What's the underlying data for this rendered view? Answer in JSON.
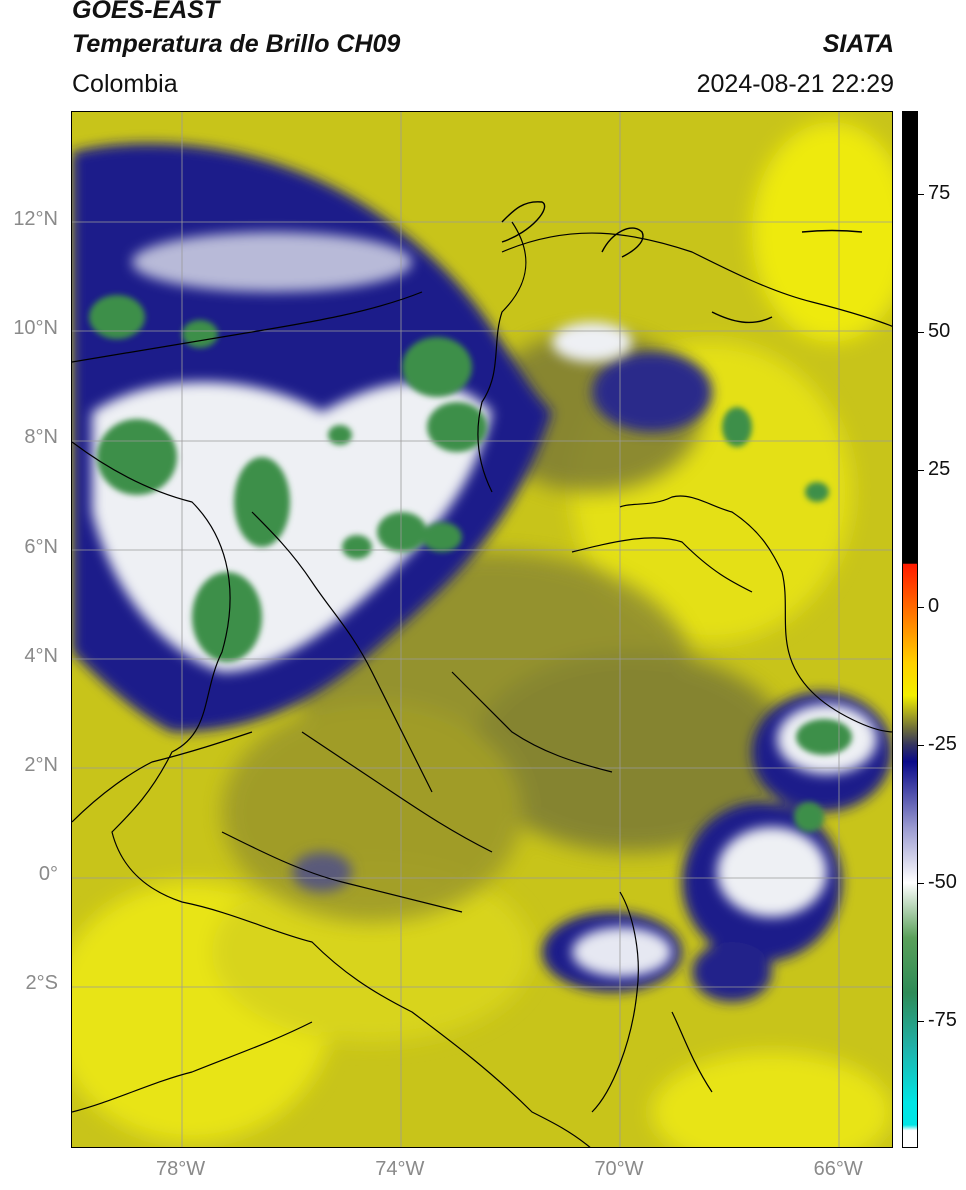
{
  "header": {
    "title_line1": "GOES-EAST",
    "title_line2": "Temperatura de Brillo CH09",
    "agency": "SIATA",
    "region": "Colombia",
    "timestamp": "2024-08-21 22:29"
  },
  "axes": {
    "lat_labels": [
      {
        "text": "12°N",
        "value": 12
      },
      {
        "text": "10°N",
        "value": 10
      },
      {
        "text": "8°N",
        "value": 8
      },
      {
        "text": "6°N",
        "value": 6
      },
      {
        "text": "4°N",
        "value": 4
      },
      {
        "text": "2°N",
        "value": 2
      },
      {
        "text": "0°",
        "value": 0
      },
      {
        "text": "2°S",
        "value": -2
      }
    ],
    "lon_labels": [
      {
        "text": "78°W",
        "value": -78
      },
      {
        "text": "74°W",
        "value": -74
      },
      {
        "text": "70°W",
        "value": -70
      },
      {
        "text": "66°W",
        "value": -66
      }
    ],
    "lon_range": [
      -80.0,
      -65.0
    ],
    "lat_range": [
      -5.0,
      14.0
    ],
    "grid": true
  },
  "colorbar": {
    "ticks": [
      {
        "text": "75",
        "value": 75
      },
      {
        "text": "50",
        "value": 50
      },
      {
        "text": "25",
        "value": 25
      },
      {
        "text": "0",
        "value": 0
      },
      {
        "text": "-25",
        "value": -25
      },
      {
        "text": "-50",
        "value": -50
      },
      {
        "text": "-75",
        "value": -75
      }
    ],
    "range": [
      -98,
      90
    ],
    "stops": [
      {
        "value": 90,
        "color": "#000000"
      },
      {
        "value": 8,
        "color": "#000000"
      },
      {
        "value": 7.9,
        "color": "#ff1a00"
      },
      {
        "value": 0,
        "color": "#ff6a00"
      },
      {
        "value": -10,
        "color": "#ffd000"
      },
      {
        "value": -16,
        "color": "#f2ef00"
      },
      {
        "value": -22,
        "color": "#6e6e3a"
      },
      {
        "value": -25,
        "color": "#333360"
      },
      {
        "value": -28,
        "color": "#0a0a8a"
      },
      {
        "value": -40,
        "color": "#9a9ad0"
      },
      {
        "value": -50,
        "color": "#ffffff"
      },
      {
        "value": -60,
        "color": "#5aa05a"
      },
      {
        "value": -70,
        "color": "#2e8b57"
      },
      {
        "value": -80,
        "color": "#20b2aa"
      },
      {
        "value": -90,
        "color": "#00e5e5"
      },
      {
        "value": -94,
        "color": "#00e5e5"
      },
      {
        "value": -95,
        "color": "#ffffff"
      },
      {
        "value": -98,
        "color": "#ffffff"
      }
    ]
  },
  "palette": {
    "warm_bg": "#c8c41a",
    "bright_yellow": "#eeea10",
    "olive": "#8c8a30",
    "dark_blue": "#1b1b8a",
    "white_cloud": "#eef0f4",
    "green_core": "#3d8f4a",
    "border": "#000000"
  }
}
